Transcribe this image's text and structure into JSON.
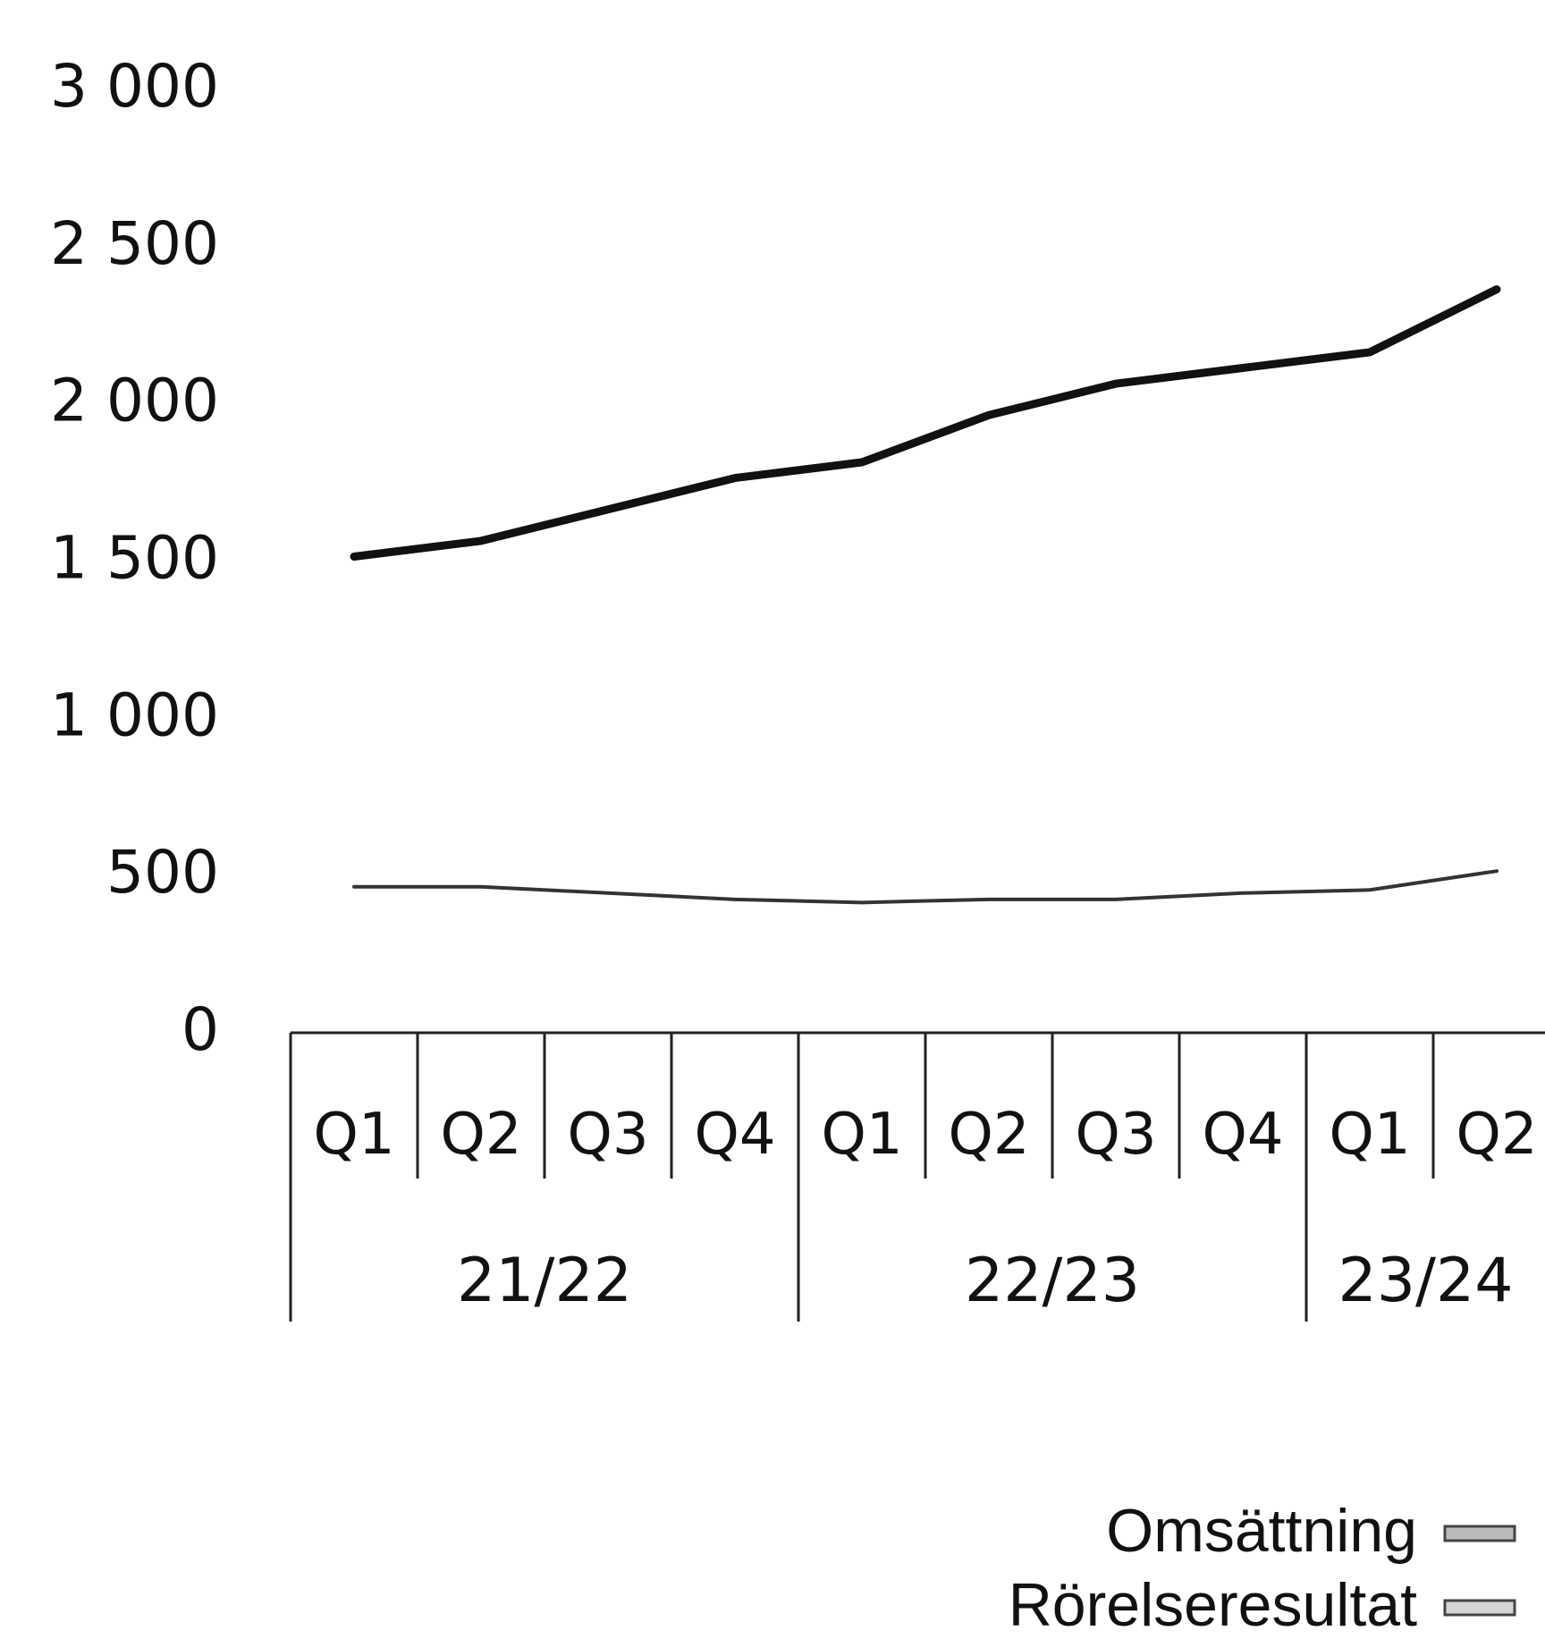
{
  "chart_data": {
    "type": "line",
    "title": "",
    "xlabel": "",
    "ylabel": "",
    "ylim": [
      0,
      3000
    ],
    "yticks": [
      0,
      500,
      1000,
      1500,
      2000,
      2500,
      3000
    ],
    "ytick_labels": [
      "0",
      "500",
      "1 000",
      "1 500",
      "2 000",
      "2 500",
      "3 000"
    ],
    "grid": false,
    "legend_position": "bottom-right",
    "groups": [
      {
        "label": "21/22",
        "quarters": [
          "Q1",
          "Q2",
          "Q3",
          "Q4"
        ]
      },
      {
        "label": "22/23",
        "quarters": [
          "Q1",
          "Q2",
          "Q3",
          "Q4"
        ]
      },
      {
        "label": "23/24",
        "quarters": [
          "Q1",
          "Q2"
        ]
      }
    ],
    "series": [
      {
        "name": "Omsättning",
        "color": "#111111",
        "values": [
          1500,
          1550,
          1650,
          1750,
          1800,
          1950,
          2050,
          2100,
          2150,
          2350
        ]
      },
      {
        "name": "Rörelseresultat",
        "color": "#333333",
        "values": [
          450,
          450,
          430,
          410,
          400,
          410,
          410,
          430,
          440,
          500
        ]
      }
    ]
  }
}
